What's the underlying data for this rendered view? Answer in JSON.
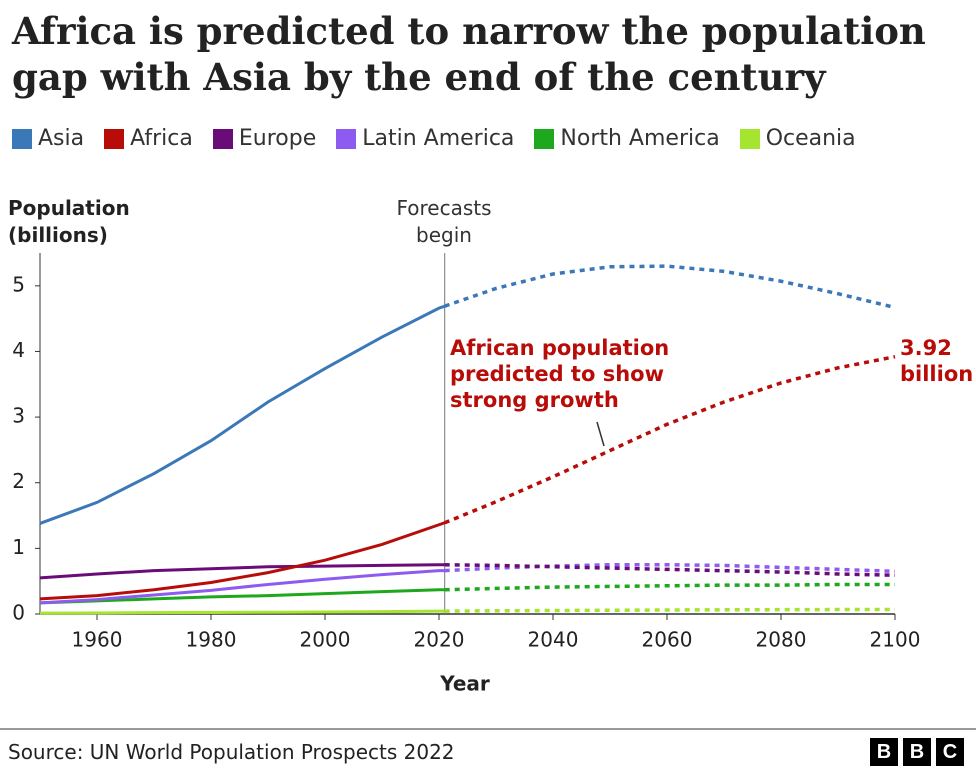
{
  "chart_data": {
    "type": "line",
    "title": "Africa is predicted to narrow the population gap with Asia by the end of the century",
    "y_label": "Population (billions)",
    "x_label": "Year",
    "forecast_label": "Forecasts begin",
    "forecast_x": 2021,
    "annotation": "African population predicted to show strong growth",
    "source": "Source: UN World Population Prospects 2022",
    "logo": [
      "B",
      "B",
      "C"
    ],
    "xlim": [
      1950,
      2100
    ],
    "xticks": [
      1960,
      1980,
      2000,
      2020,
      2040,
      2060,
      2080,
      2100
    ],
    "ylim": [
      0,
      5.5
    ],
    "yticks": [
      0,
      1,
      2,
      3,
      4,
      5
    ],
    "x": [
      1950,
      1960,
      1970,
      1980,
      1990,
      2000,
      2010,
      2020,
      2021,
      2030,
      2040,
      2050,
      2060,
      2070,
      2080,
      2090,
      2100
    ],
    "series": [
      {
        "name": "Asia",
        "color": "#3a78b8",
        "values": [
          1.38,
          1.7,
          2.14,
          2.64,
          3.23,
          3.74,
          4.22,
          4.66,
          4.69,
          4.96,
          5.18,
          5.29,
          5.3,
          5.22,
          5.07,
          4.88,
          4.67
        ]
      },
      {
        "name": "Africa",
        "color": "#b80c09",
        "values": [
          0.23,
          0.28,
          0.37,
          0.48,
          0.63,
          0.82,
          1.06,
          1.36,
          1.39,
          1.71,
          2.09,
          2.49,
          2.89,
          3.23,
          3.52,
          3.75,
          3.92
        ],
        "value_labels": [
          null,
          null,
          null,
          null,
          null,
          null,
          null,
          null,
          null,
          null,
          null,
          null,
          null,
          null,
          null,
          null,
          "3.92 billion"
        ]
      },
      {
        "name": "Europe",
        "color": "#6a0c78",
        "values": [
          0.55,
          0.61,
          0.66,
          0.69,
          0.72,
          0.73,
          0.74,
          0.75,
          0.75,
          0.74,
          0.72,
          0.7,
          0.68,
          0.66,
          0.64,
          0.61,
          0.59
        ]
      },
      {
        "name": "Latin America",
        "color": "#8e5bf0",
        "values": [
          0.17,
          0.22,
          0.29,
          0.36,
          0.45,
          0.53,
          0.6,
          0.66,
          0.66,
          0.7,
          0.73,
          0.75,
          0.75,
          0.74,
          0.71,
          0.68,
          0.65
        ]
      },
      {
        "name": "North America",
        "color": "#1ea81e",
        "values": [
          0.17,
          0.2,
          0.23,
          0.26,
          0.28,
          0.31,
          0.34,
          0.37,
          0.37,
          0.39,
          0.41,
          0.42,
          0.43,
          0.44,
          0.44,
          0.45,
          0.45
        ]
      },
      {
        "name": "Oceania",
        "color": "#a5e52f",
        "values": [
          0.013,
          0.016,
          0.02,
          0.023,
          0.027,
          0.031,
          0.037,
          0.043,
          0.044,
          0.049,
          0.053,
          0.057,
          0.061,
          0.064,
          0.066,
          0.068,
          0.069
        ]
      }
    ]
  }
}
